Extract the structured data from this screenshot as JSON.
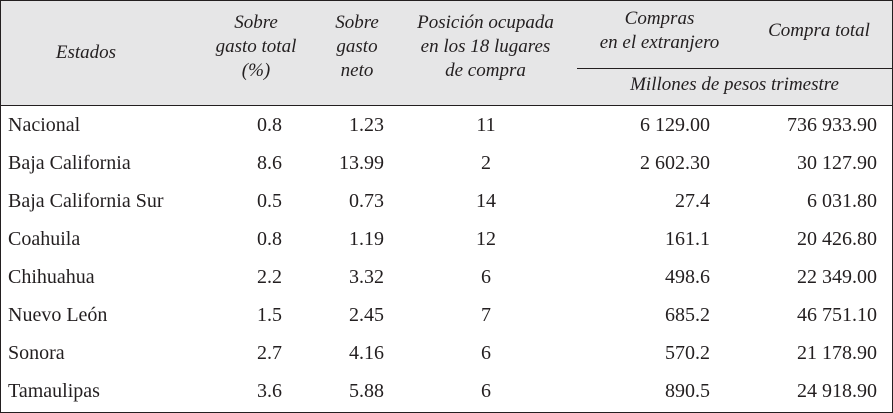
{
  "header": {
    "estados": "Estados",
    "sobre_gasto_total": [
      "Sobre",
      "gasto total",
      "(%)"
    ],
    "sobre_gasto_neto": [
      "Sobre",
      "gasto",
      "neto"
    ],
    "posicion": [
      "Posición ocupada",
      "en los 18 lugares",
      "de compra"
    ],
    "compras_extranjero": [
      "Compras",
      "en el extranjero"
    ],
    "compra_total": "Compra total",
    "unidad": "Millones de pesos trimestre"
  },
  "rows": [
    {
      "estado": "Nacional",
      "gasto_total": "0.8",
      "gasto_neto": "1.23",
      "posicion": "11",
      "compras_extranjero": "6 129.00",
      "compra_total": "736 933.90"
    },
    {
      "estado": "Baja California",
      "gasto_total": "8.6",
      "gasto_neto": "13.99",
      "posicion": "2",
      "compras_extranjero": "2 602.30",
      "compra_total": "30 127.90"
    },
    {
      "estado": "Baja California Sur",
      "gasto_total": "0.5",
      "gasto_neto": "0.73",
      "posicion": "14",
      "compras_extranjero": "27.4",
      "compra_total": "6 031.80"
    },
    {
      "estado": "Coahuila",
      "gasto_total": "0.8",
      "gasto_neto": "1.19",
      "posicion": "12",
      "compras_extranjero": "161.1",
      "compra_total": "20 426.80"
    },
    {
      "estado": "Chihuahua",
      "gasto_total": "2.2",
      "gasto_neto": "3.32",
      "posicion": "6",
      "compras_extranjero": "498.6",
      "compra_total": "22 349.00"
    },
    {
      "estado": "Nuevo León",
      "gasto_total": "1.5",
      "gasto_neto": "2.45",
      "posicion": "7",
      "compras_extranjero": "685.2",
      "compra_total": "46 751.10"
    },
    {
      "estado": "Sonora",
      "gasto_total": "2.7",
      "gasto_neto": "4.16",
      "posicion": "6",
      "compras_extranjero": "570.2",
      "compra_total": "21 178.90"
    },
    {
      "estado": "Tamaulipas",
      "gasto_total": "3.6",
      "gasto_neto": "5.88",
      "posicion": "6",
      "compras_extranjero": "890.5",
      "compra_total": "24 918.90"
    }
  ]
}
